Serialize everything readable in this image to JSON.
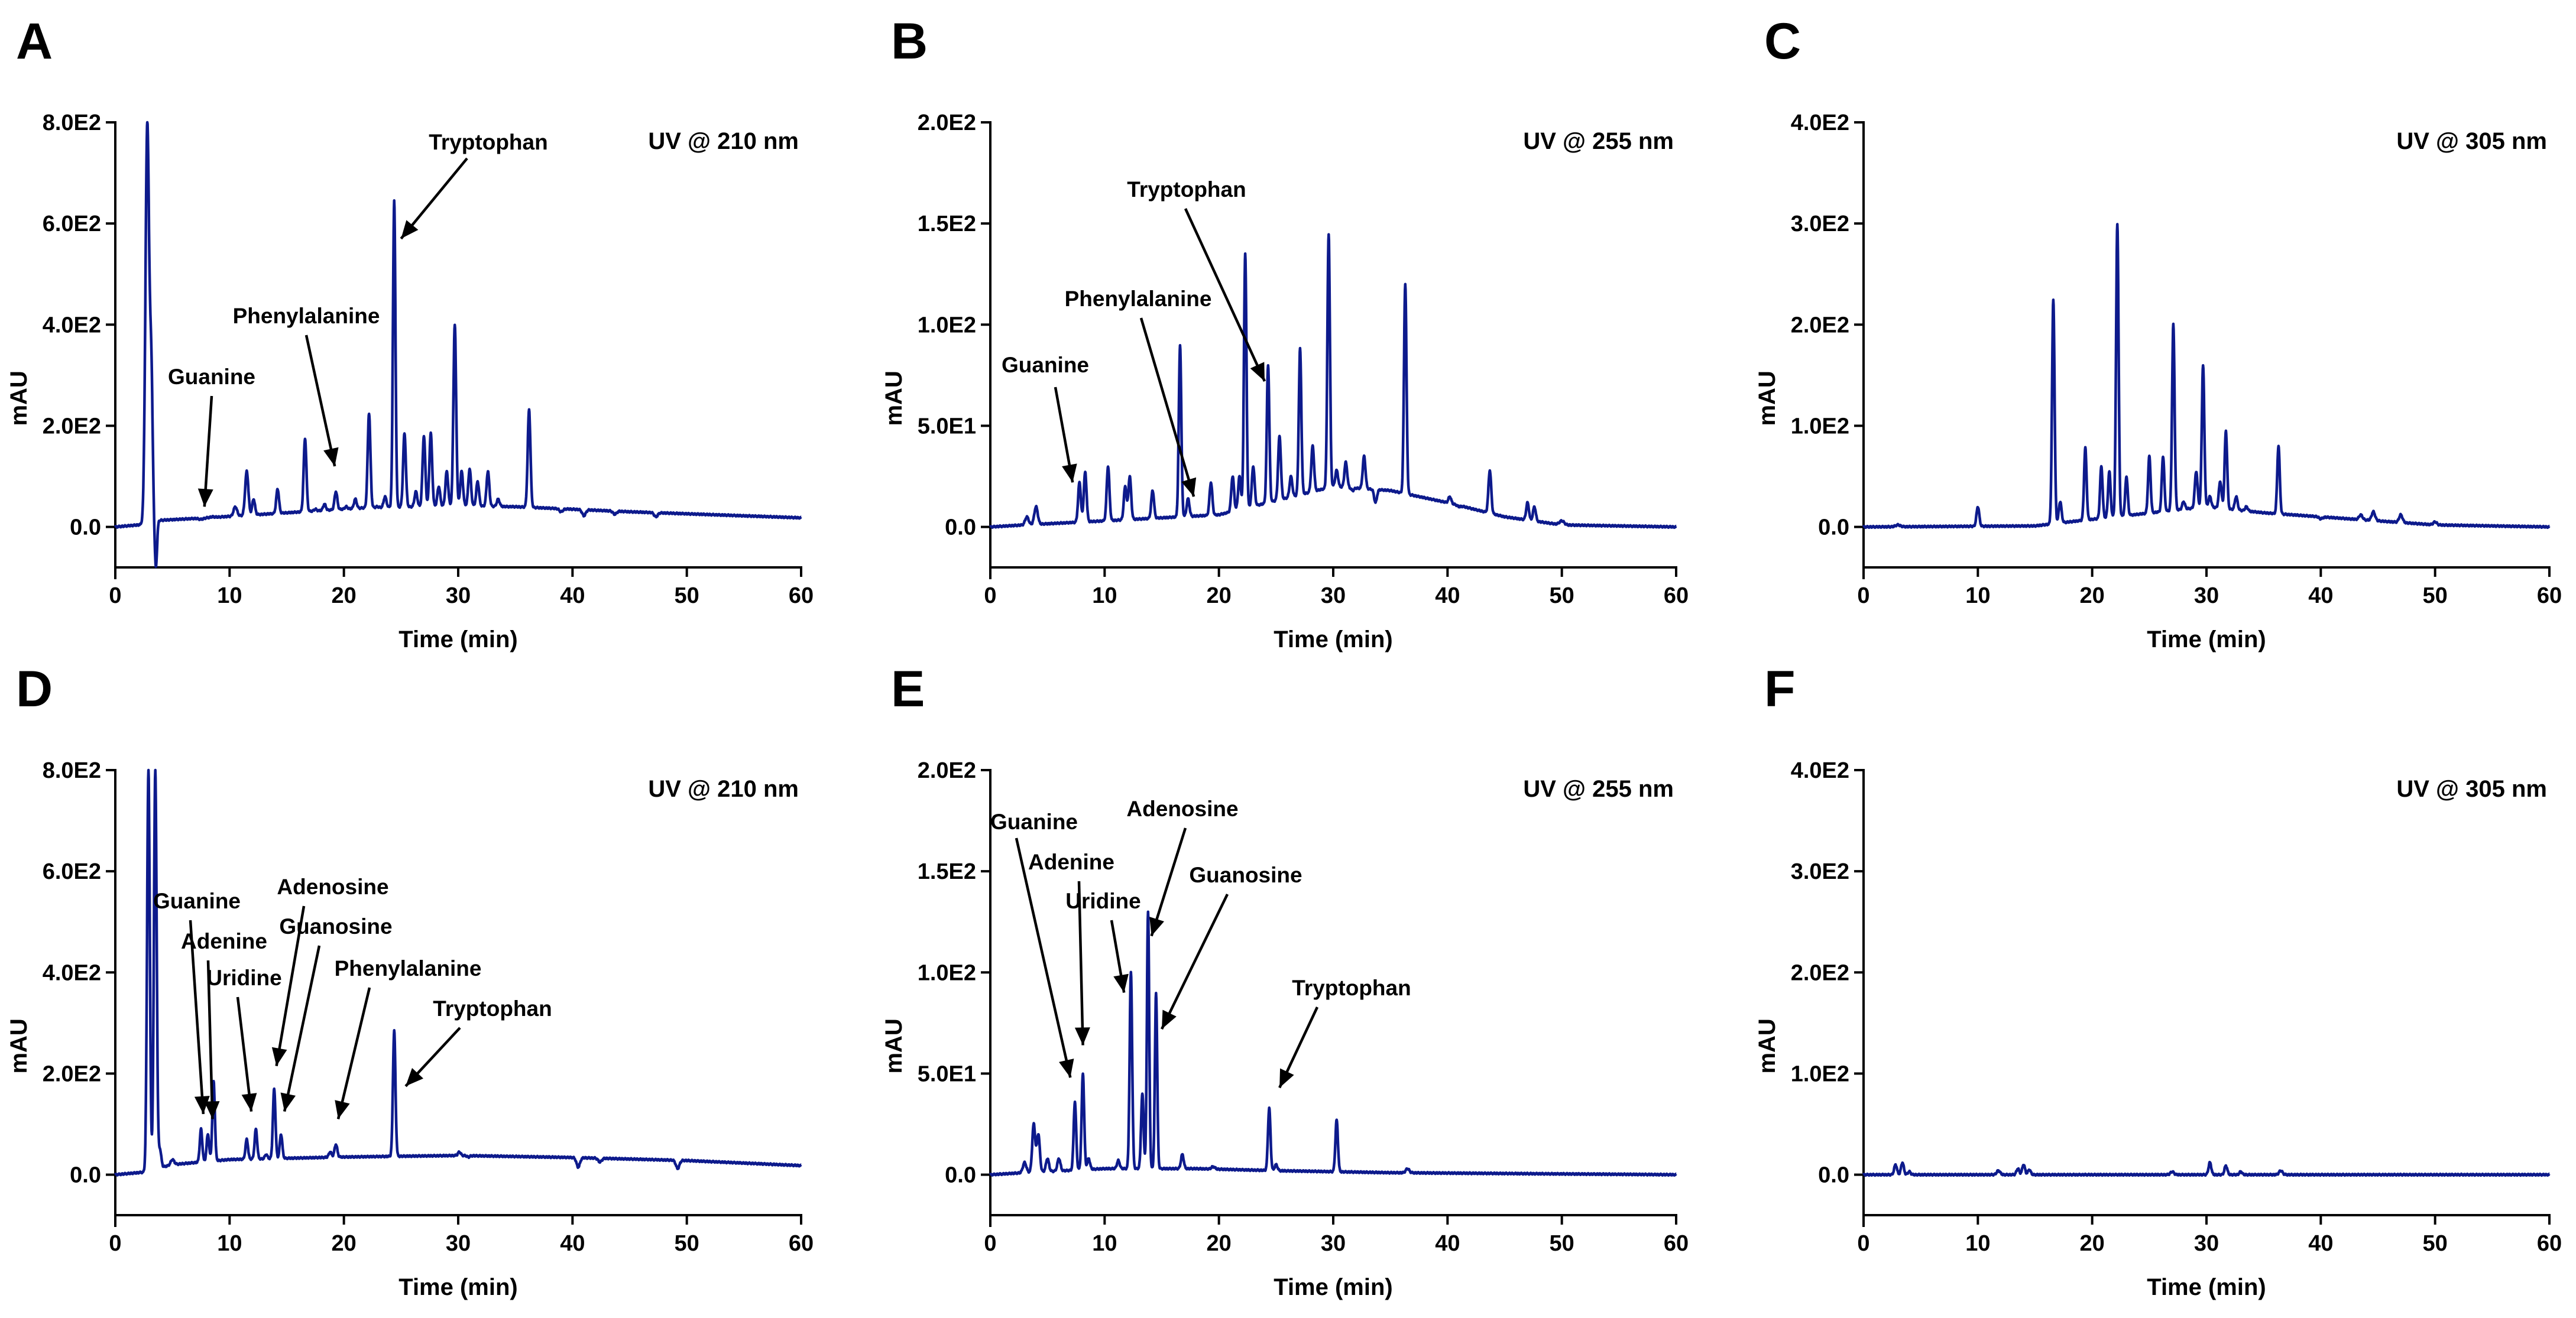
{
  "colors": {
    "trace": "#0d1a8c",
    "axis": "#000000",
    "background": "#ffffff"
  },
  "chart_data": [
    {
      "panel": "A",
      "type": "line",
      "detector": "UV @ 210 nm",
      "xlabel": "Time (min)",
      "ylabel": "mAU",
      "xlim": [
        0,
        60
      ],
      "ylim": [
        -80,
        800
      ],
      "xticks": [
        "0",
        "10",
        "20",
        "30",
        "40",
        "50",
        "60"
      ],
      "yticks": [
        {
          "v": 0,
          "label": "0.0"
        },
        {
          "v": 200,
          "label": "2.0E2"
        },
        {
          "v": 400,
          "label": "4.0E2"
        },
        {
          "v": 600,
          "label": "6.0E2"
        },
        {
          "v": 800,
          "label": "8.0E2"
        }
      ],
      "baseline": [
        [
          0,
          0
        ],
        [
          2.5,
          5
        ],
        [
          3,
          12
        ],
        [
          8,
          18
        ],
        [
          15,
          28
        ],
        [
          22,
          38
        ],
        [
          30,
          42
        ],
        [
          35,
          40
        ],
        [
          45,
          30
        ],
        [
          55,
          22
        ],
        [
          60,
          18
        ]
      ],
      "peaks": [
        [
          2.8,
          800,
          0.16
        ],
        [
          3.15,
          290,
          0.12
        ],
        [
          3.55,
          -80,
          0.1
        ],
        [
          7.5,
          15,
          0.2
        ],
        [
          8.5,
          20,
          0.2
        ],
        [
          10.5,
          40,
          0.15
        ],
        [
          11.5,
          110,
          0.14
        ],
        [
          12.1,
          55,
          0.12
        ],
        [
          14.2,
          75,
          0.12
        ],
        [
          16.6,
          175,
          0.12
        ],
        [
          17.5,
          35,
          0.12
        ],
        [
          18.3,
          45,
          0.12
        ],
        [
          19.3,
          70,
          0.12
        ],
        [
          20.2,
          40,
          0.12
        ],
        [
          21.0,
          55,
          0.12
        ],
        [
          22.2,
          225,
          0.12
        ],
        [
          22.9,
          40,
          0.12
        ],
        [
          23.6,
          60,
          0.12
        ],
        [
          24.4,
          645,
          0.11
        ],
        [
          25.3,
          185,
          0.12
        ],
        [
          26.3,
          70,
          0.12
        ],
        [
          27.0,
          180,
          0.12
        ],
        [
          27.6,
          185,
          0.12
        ],
        [
          28.3,
          80,
          0.12
        ],
        [
          29.0,
          110,
          0.12
        ],
        [
          29.7,
          400,
          0.12
        ],
        [
          30.3,
          110,
          0.12
        ],
        [
          31.0,
          115,
          0.12
        ],
        [
          31.7,
          90,
          0.12
        ],
        [
          32.6,
          110,
          0.12
        ],
        [
          33.5,
          55,
          0.12
        ],
        [
          34.4,
          40,
          0.12
        ],
        [
          36.2,
          232,
          0.12
        ],
        [
          39.0,
          30,
          0.15
        ],
        [
          41.0,
          22,
          0.15
        ],
        [
          43.7,
          25,
          0.15
        ],
        [
          47.3,
          20,
          0.15
        ]
      ],
      "annotations": [
        {
          "label": "Guanine",
          "peak_time": 7.8,
          "peak_value": 40
        },
        {
          "label": "Phenylalanine",
          "peak_time": 19.2,
          "peak_value": 120
        },
        {
          "label": "Tryptophan",
          "peak_time": 25.0,
          "peak_value": 570
        }
      ]
    },
    {
      "panel": "B",
      "type": "line",
      "detector": "UV @ 255 nm",
      "xlabel": "Time (min)",
      "ylabel": "mAU",
      "xlim": [
        0,
        60
      ],
      "ylim": [
        -20,
        200
      ],
      "xticks": [
        "0",
        "10",
        "20",
        "30",
        "40",
        "50",
        "60"
      ],
      "yticks": [
        {
          "v": 0,
          "label": "0.0"
        },
        {
          "v": 50,
          "label": "5.0E1"
        },
        {
          "v": 100,
          "label": "1.0E2"
        },
        {
          "v": 150,
          "label": "1.5E2"
        },
        {
          "v": 200,
          "label": "2.0E2"
        }
      ],
      "baseline": [
        [
          0,
          0
        ],
        [
          3,
          1
        ],
        [
          10,
          3
        ],
        [
          20,
          6
        ],
        [
          30,
          20
        ],
        [
          35,
          18
        ],
        [
          40,
          12
        ],
        [
          45,
          5
        ],
        [
          50,
          1
        ],
        [
          60,
          0
        ]
      ],
      "peaks": [
        [
          3.2,
          5,
          0.15
        ],
        [
          4.0,
          10,
          0.15
        ],
        [
          7.8,
          22,
          0.12
        ],
        [
          8.3,
          27,
          0.12
        ],
        [
          10.3,
          30,
          0.12
        ],
        [
          11.8,
          20,
          0.12
        ],
        [
          12.2,
          25,
          0.12
        ],
        [
          14.2,
          18,
          0.12
        ],
        [
          16.6,
          90,
          0.11
        ],
        [
          17.3,
          14,
          0.12
        ],
        [
          19.3,
          22,
          0.12
        ],
        [
          21.2,
          25,
          0.12
        ],
        [
          21.8,
          25,
          0.12
        ],
        [
          22.3,
          135,
          0.11
        ],
        [
          23.0,
          30,
          0.12
        ],
        [
          24.3,
          80,
          0.11
        ],
        [
          25.3,
          45,
          0.12
        ],
        [
          26.3,
          25,
          0.12
        ],
        [
          27.1,
          88,
          0.11
        ],
        [
          28.2,
          40,
          0.12
        ],
        [
          29.6,
          145,
          0.11
        ],
        [
          30.3,
          28,
          0.12
        ],
        [
          31.1,
          32,
          0.12
        ],
        [
          31.7,
          18,
          0.12
        ],
        [
          32.7,
          35,
          0.12
        ],
        [
          33.7,
          12,
          0.12
        ],
        [
          36.3,
          120,
          0.11
        ],
        [
          40.2,
          15,
          0.12
        ],
        [
          41.0,
          10,
          0.12
        ],
        [
          43.7,
          28,
          0.12
        ],
        [
          47.0,
          12,
          0.12
        ],
        [
          47.6,
          10,
          0.12
        ],
        [
          50.0,
          3,
          0.2
        ]
      ],
      "annotations": [
        {
          "label": "Guanine",
          "peak_time": 7.2,
          "peak_value": 22
        },
        {
          "label": "Phenylalanine",
          "peak_time": 17.8,
          "peak_value": 15
        },
        {
          "label": "Tryptophan",
          "peak_time": 24.0,
          "peak_value": 72
        }
      ]
    },
    {
      "panel": "C",
      "type": "line",
      "detector": "UV @ 305 nm",
      "xlabel": "Time (min)",
      "ylabel": "mAU",
      "xlim": [
        0,
        60
      ],
      "ylim": [
        -40,
        400
      ],
      "xticks": [
        "0",
        "10",
        "20",
        "30",
        "40",
        "50",
        "60"
      ],
      "yticks": [
        {
          "v": 0,
          "label": "0.0"
        },
        {
          "v": 100,
          "label": "1.0E2"
        },
        {
          "v": 200,
          "label": "2.0E2"
        },
        {
          "v": 300,
          "label": "3.0E2"
        },
        {
          "v": 400,
          "label": "4.0E2"
        }
      ],
      "baseline": [
        [
          0,
          0
        ],
        [
          15,
          1
        ],
        [
          18,
          5
        ],
        [
          22,
          10
        ],
        [
          30,
          20
        ],
        [
          35,
          14
        ],
        [
          40,
          10
        ],
        [
          45,
          6
        ],
        [
          50,
          2
        ],
        [
          60,
          0
        ]
      ],
      "peaks": [
        [
          3.0,
          2,
          0.2
        ],
        [
          10.0,
          20,
          0.12
        ],
        [
          16.6,
          225,
          0.11
        ],
        [
          17.2,
          25,
          0.12
        ],
        [
          19.4,
          78,
          0.11
        ],
        [
          20.8,
          60,
          0.11
        ],
        [
          21.5,
          55,
          0.11
        ],
        [
          22.2,
          300,
          0.11
        ],
        [
          23.0,
          50,
          0.11
        ],
        [
          25.0,
          70,
          0.11
        ],
        [
          26.2,
          70,
          0.11
        ],
        [
          27.1,
          200,
          0.11
        ],
        [
          28.0,
          25,
          0.12
        ],
        [
          29.1,
          55,
          0.12
        ],
        [
          29.7,
          160,
          0.11
        ],
        [
          30.3,
          30,
          0.12
        ],
        [
          31.2,
          45,
          0.12
        ],
        [
          31.7,
          95,
          0.11
        ],
        [
          32.6,
          30,
          0.12
        ],
        [
          33.5,
          20,
          0.12
        ],
        [
          36.3,
          80,
          0.11
        ],
        [
          40.0,
          8,
          0.15
        ],
        [
          43.5,
          12,
          0.15
        ],
        [
          44.6,
          15,
          0.15
        ],
        [
          47.0,
          12,
          0.15
        ],
        [
          50.0,
          5,
          0.15
        ]
      ],
      "annotations": []
    },
    {
      "panel": "D",
      "type": "line",
      "detector": "UV @ 210 nm",
      "xlabel": "Time (min)",
      "ylabel": "mAU",
      "xlim": [
        0,
        60
      ],
      "ylim": [
        -80,
        800
      ],
      "xticks": [
        "0",
        "10",
        "20",
        "30",
        "40",
        "50",
        "60"
      ],
      "yticks": [
        {
          "v": 0,
          "label": "0.0"
        },
        {
          "v": 200,
          "label": "2.0E2"
        },
        {
          "v": 400,
          "label": "4.0E2"
        },
        {
          "v": 600,
          "label": "6.0E2"
        },
        {
          "v": 800,
          "label": "8.0E2"
        }
      ],
      "baseline": [
        [
          0,
          0
        ],
        [
          2.5,
          5
        ],
        [
          5,
          20
        ],
        [
          10,
          30
        ],
        [
          20,
          35
        ],
        [
          30,
          38
        ],
        [
          40,
          34
        ],
        [
          50,
          28
        ],
        [
          60,
          18
        ]
      ],
      "peaks": [
        [
          2.9,
          800,
          0.12
        ],
        [
          3.5,
          800,
          0.12
        ],
        [
          3.9,
          50,
          0.12
        ],
        [
          5.0,
          30,
          0.15
        ],
        [
          7.5,
          90,
          0.11
        ],
        [
          8.1,
          80,
          0.11
        ],
        [
          8.6,
          185,
          0.11
        ],
        [
          11.5,
          70,
          0.11
        ],
        [
          12.3,
          90,
          0.11
        ],
        [
          13.2,
          40,
          0.11
        ],
        [
          13.9,
          170,
          0.11
        ],
        [
          14.5,
          80,
          0.11
        ],
        [
          18.8,
          45,
          0.12
        ],
        [
          19.3,
          60,
          0.12
        ],
        [
          24.4,
          285,
          0.11
        ],
        [
          30.1,
          45,
          0.12
        ],
        [
          30.9,
          35,
          0.12
        ],
        [
          40.5,
          15,
          0.15
        ],
        [
          42.4,
          25,
          0.15
        ],
        [
          49.2,
          12,
          0.15
        ]
      ],
      "annotations": [
        {
          "label": "Guanine",
          "peak_time": 7.7,
          "peak_value": 120
        },
        {
          "label": "Adenine",
          "peak_time": 8.5,
          "peak_value": 110
        },
        {
          "label": "Uridine",
          "peak_time": 11.9,
          "peak_value": 125
        },
        {
          "label": "Adenosine",
          "peak_time": 14.1,
          "peak_value": 215
        },
        {
          "label": "Guanosine",
          "peak_time": 14.8,
          "peak_value": 125
        },
        {
          "label": "Phenylalanine",
          "peak_time": 19.5,
          "peak_value": 110
        },
        {
          "label": "Tryptophan",
          "peak_time": 25.4,
          "peak_value": 175
        }
      ]
    },
    {
      "panel": "E",
      "type": "line",
      "detector": "UV @ 255 nm",
      "xlabel": "Time (min)",
      "ylabel": "mAU",
      "xlim": [
        0,
        60
      ],
      "ylim": [
        -20,
        200
      ],
      "xticks": [
        "0",
        "10",
        "20",
        "30",
        "40",
        "50",
        "60"
      ],
      "yticks": [
        {
          "v": 0,
          "label": "0.0"
        },
        {
          "v": 50,
          "label": "5.0E1"
        },
        {
          "v": 100,
          "label": "1.0E2"
        },
        {
          "v": 150,
          "label": "1.5E2"
        },
        {
          "v": 200,
          "label": "2.0E2"
        }
      ],
      "baseline": [
        [
          0,
          0
        ],
        [
          3,
          1
        ],
        [
          10,
          3
        ],
        [
          18,
          3
        ],
        [
          25,
          2
        ],
        [
          35,
          1
        ],
        [
          60,
          0
        ]
      ],
      "peaks": [
        [
          3.0,
          6,
          0.15
        ],
        [
          3.8,
          25,
          0.13
        ],
        [
          4.2,
          20,
          0.13
        ],
        [
          5.0,
          8,
          0.13
        ],
        [
          6.0,
          8,
          0.13
        ],
        [
          7.4,
          36,
          0.11
        ],
        [
          8.1,
          50,
          0.11
        ],
        [
          8.6,
          8,
          0.12
        ],
        [
          11.2,
          7,
          0.12
        ],
        [
          12.3,
          100,
          0.11
        ],
        [
          13.3,
          40,
          0.11
        ],
        [
          13.8,
          130,
          0.1
        ],
        [
          14.5,
          90,
          0.1
        ],
        [
          16.8,
          10,
          0.12
        ],
        [
          19.5,
          4,
          0.15
        ],
        [
          24.4,
          33,
          0.11
        ],
        [
          25.0,
          5,
          0.12
        ],
        [
          30.3,
          27,
          0.11
        ],
        [
          36.5,
          3,
          0.15
        ]
      ],
      "annotations": [
        {
          "label": "Guanine",
          "peak_time": 7.0,
          "peak_value": 48
        },
        {
          "label": "Adenine",
          "peak_time": 8.1,
          "peak_value": 64
        },
        {
          "label": "Uridine",
          "peak_time": 11.7,
          "peak_value": 90
        },
        {
          "label": "Adenosine",
          "peak_time": 14.1,
          "peak_value": 118
        },
        {
          "label": "Guanosine",
          "peak_time": 15.0,
          "peak_value": 72
        },
        {
          "label": "Tryptophan",
          "peak_time": 25.3,
          "peak_value": 43
        }
      ]
    },
    {
      "panel": "F",
      "type": "line",
      "detector": "UV @ 305 nm",
      "xlabel": "Time (min)",
      "ylabel": "mAU",
      "xlim": [
        0,
        60
      ],
      "ylim": [
        -40,
        400
      ],
      "xticks": [
        "0",
        "10",
        "20",
        "30",
        "40",
        "50",
        "60"
      ],
      "yticks": [
        {
          "v": 0,
          "label": "0.0"
        },
        {
          "v": 100,
          "label": "1.0E2"
        },
        {
          "v": 200,
          "label": "2.0E2"
        },
        {
          "v": 300,
          "label": "3.0E2"
        },
        {
          "v": 400,
          "label": "4.0E2"
        }
      ],
      "baseline": [
        [
          0,
          0
        ],
        [
          60,
          0
        ]
      ],
      "peaks": [
        [
          2.8,
          10,
          0.12
        ],
        [
          3.4,
          12,
          0.12
        ],
        [
          4.0,
          3,
          0.12
        ],
        [
          11.8,
          4,
          0.15
        ],
        [
          13.5,
          6,
          0.12
        ],
        [
          14.0,
          10,
          0.12
        ],
        [
          14.5,
          5,
          0.12
        ],
        [
          27.0,
          3,
          0.15
        ],
        [
          30.3,
          12,
          0.12
        ],
        [
          31.7,
          9,
          0.12
        ],
        [
          33.0,
          3,
          0.12
        ],
        [
          36.5,
          4,
          0.15
        ]
      ],
      "annotations": []
    }
  ]
}
